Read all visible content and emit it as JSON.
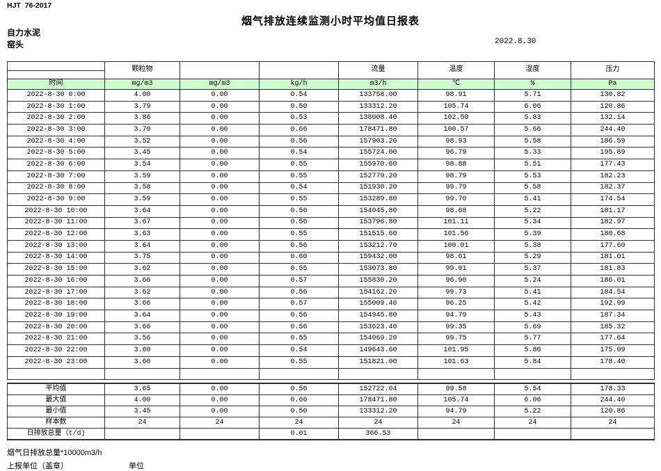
{
  "meta": {
    "doc_code": "HJT  76-2017",
    "title": "烟气排放连续监测小时平均值日报表",
    "company": "自力水泥",
    "point": "窑头",
    "date": "2022.8.30"
  },
  "colors": {
    "header_green": "#ccffcc",
    "border": "#2e2e2e",
    "background": "#ffffff"
  },
  "table": {
    "group_headers": [
      "",
      "颗粒物",
      "",
      "",
      "流量",
      "温度",
      "湿度",
      "压力"
    ],
    "unit_row": [
      "时间",
      "mg/m3",
      "mg/m3",
      "kg/h",
      "m3/h",
      "℃",
      "%",
      "Pa"
    ],
    "rows": [
      [
        "2022-8-30 0:00",
        "4.00",
        "0.00",
        "0.54",
        "133758.00",
        "98.91",
        "5.71",
        "130.82"
      ],
      [
        "2022-8-30 1:00",
        "3.79",
        "0.00",
        "0.50",
        "133312.20",
        "105.74",
        "6.06",
        "120.86"
      ],
      [
        "2022-8-30 2:00",
        "3.86",
        "0.00",
        "0.53",
        "138008.40",
        "102.50",
        "5.83",
        "132.14"
      ],
      [
        "2022-8-30 3:00",
        "3.70",
        "0.00",
        "0.66",
        "178471.80",
        "100.57",
        "5.66",
        "244.40"
      ],
      [
        "2022-8-30 4:00",
        "3.52",
        "0.00",
        "0.56",
        "157903.20",
        "98.93",
        "5.58",
        "186.59"
      ],
      [
        "2022-8-30 5:00",
        "3.45",
        "0.00",
        "0.54",
        "155724.00",
        "96.79",
        "5.33",
        "195.89"
      ],
      [
        "2022-8-30 6:00",
        "3.54",
        "0.00",
        "0.55",
        "155970.60",
        "98.88",
        "5.51",
        "177.43"
      ],
      [
        "2022-8-30 7:00",
        "3.59",
        "0.00",
        "0.55",
        "152779.20",
        "98.79",
        "5.53",
        "182.23"
      ],
      [
        "2022-8-30 8:00",
        "3.58",
        "0.00",
        "0.54",
        "151930.20",
        "99.79",
        "5.58",
        "182.37"
      ],
      [
        "2022-8-30 9:00",
        "3.59",
        "0.00",
        "0.55",
        "153289.80",
        "99.70",
        "5.41",
        "174.54"
      ],
      [
        "2022-8-30 10:00",
        "3.64",
        "0.00",
        "0.56",
        "154045.80",
        "98.68",
        "5.22",
        "181.17"
      ],
      [
        "2022-8-30 11:00",
        "3.67",
        "0.00",
        "0.56",
        "153796.80",
        "101.11",
        "5.34",
        "182.97"
      ],
      [
        "2022-8-30 12:00",
        "3.63",
        "0.00",
        "0.55",
        "151515.60",
        "101.56",
        "5.39",
        "180.68"
      ],
      [
        "2022-8-30 13:00",
        "3.64",
        "0.00",
        "0.56",
        "153212.70",
        "100.01",
        "5.38",
        "177.60"
      ],
      [
        "2022-8-30 14:00",
        "3.75",
        "0.00",
        "0.60",
        "159432.00",
        "98.61",
        "5.29",
        "181.01"
      ],
      [
        "2022-8-30 15:00",
        "3.62",
        "0.00",
        "0.55",
        "153073.80",
        "99.01",
        "5.37",
        "181.83"
      ],
      [
        "2022-8-30 16:00",
        "3.66",
        "0.00",
        "0.57",
        "155830.20",
        "96.90",
        "5.24",
        "186.01"
      ],
      [
        "2022-8-30 17:00",
        "3.62",
        "0.00",
        "0.56",
        "154162.20",
        "99.73",
        "5.41",
        "184.54"
      ],
      [
        "2022-8-30 18:00",
        "3.66",
        "0.00",
        "0.57",
        "155009.40",
        "96.25",
        "5.42",
        "192.99"
      ],
      [
        "2022-8-30 19:00",
        "3.64",
        "0.00",
        "0.56",
        "154945.80",
        "94.79",
        "5.43",
        "187.34"
      ],
      [
        "2022-8-30 20:00",
        "3.66",
        "0.00",
        "0.56",
        "153623.40",
        "99.35",
        "5.69",
        "185.32"
      ],
      [
        "2022-8-30 21:00",
        "3.56",
        "0.00",
        "0.55",
        "154069.20",
        "99.75",
        "5.77",
        "177.64"
      ],
      [
        "2022-8-30 22:00",
        "3.60",
        "0.00",
        "0.54",
        "149643.60",
        "101.95",
        "5.86",
        "175.09"
      ],
      [
        "2022-8-30 23:00",
        "3.60",
        "0.00",
        "0.55",
        "151821.00",
        "101.63",
        "5.84",
        "178.40"
      ]
    ],
    "summary": [
      [
        "平均值",
        "3.65",
        "0.00",
        "0.56",
        "152722.04",
        "99.58",
        "5.54",
        "178.33"
      ],
      [
        "最大值",
        "4.00",
        "0.00",
        "0.66",
        "178471.80",
        "105.74",
        "6.06",
        "244.40"
      ],
      [
        "最小值",
        "3.45",
        "0.00",
        "0.50",
        "133312.20",
        "94.79",
        "5.22",
        "120.86"
      ],
      [
        "样本数",
        "24",
        "24",
        "24",
        "24",
        "24",
        "24",
        "24"
      ],
      [
        "日排放总量（t/d)",
        "",
        "",
        "0.01",
        "366.53",
        "",
        "",
        ""
      ]
    ]
  },
  "footer": {
    "note": "烟气日排放总量*10000m3/h",
    "report_unit_label": "上报单位（盖章）",
    "unit_label": "单位"
  }
}
